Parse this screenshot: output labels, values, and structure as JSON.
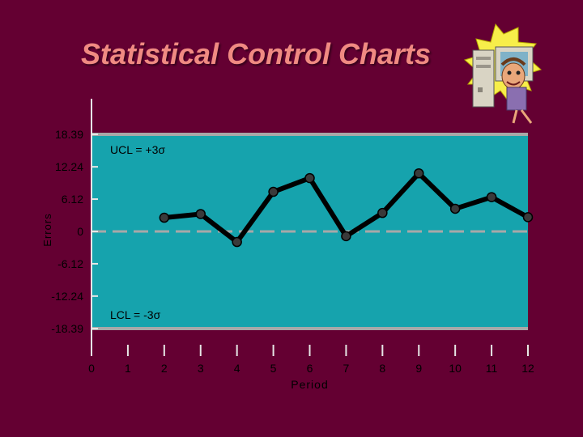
{
  "slide": {
    "title": "Statistical Control Charts"
  },
  "colors": {
    "background": "#640032",
    "title": "#f08a82",
    "plot_area": "#16a3ad",
    "control_line": "#a8a8a8",
    "center_line": "#a8a8a8",
    "series": "#000000",
    "text": "#e6e6e6"
  },
  "chart_data": {
    "type": "line",
    "title": "",
    "xlabel": "Period",
    "ylabel": "Errors",
    "x_ticks": [
      0,
      1,
      2,
      3,
      4,
      5,
      6,
      7,
      8,
      9,
      10,
      11,
      12
    ],
    "y_ticks": [
      {
        "value": 18.39,
        "label": "18.39"
      },
      {
        "value": 12.24,
        "label": "12.24"
      },
      {
        "value": 6.12,
        "label": "6.12"
      },
      {
        "value": 0,
        "label": "0"
      },
      {
        "value": -6.12,
        "label": "-6.12"
      },
      {
        "value": -12.24,
        "label": "-12.24"
      },
      {
        "value": -18.39,
        "label": "-18.39"
      }
    ],
    "xlim": [
      0,
      12
    ],
    "ylim": [
      -18.39,
      18.39
    ],
    "ucl": {
      "value": 18.39,
      "label": "UCL = +3σ"
    },
    "lcl": {
      "value": -18.39,
      "label": "LCL = -3σ"
    },
    "center_line": {
      "value": 0,
      "style": "dashed"
    },
    "grid": false,
    "legend": "none",
    "series": [
      {
        "x": [
          2,
          3,
          4,
          5,
          6,
          7,
          8,
          9,
          10,
          11,
          12
        ],
        "values": [
          2.6,
          3.3,
          -2.0,
          7.5,
          10.1,
          -0.9,
          3.5,
          11.0,
          4.3,
          6.5,
          2.7
        ]
      }
    ]
  }
}
